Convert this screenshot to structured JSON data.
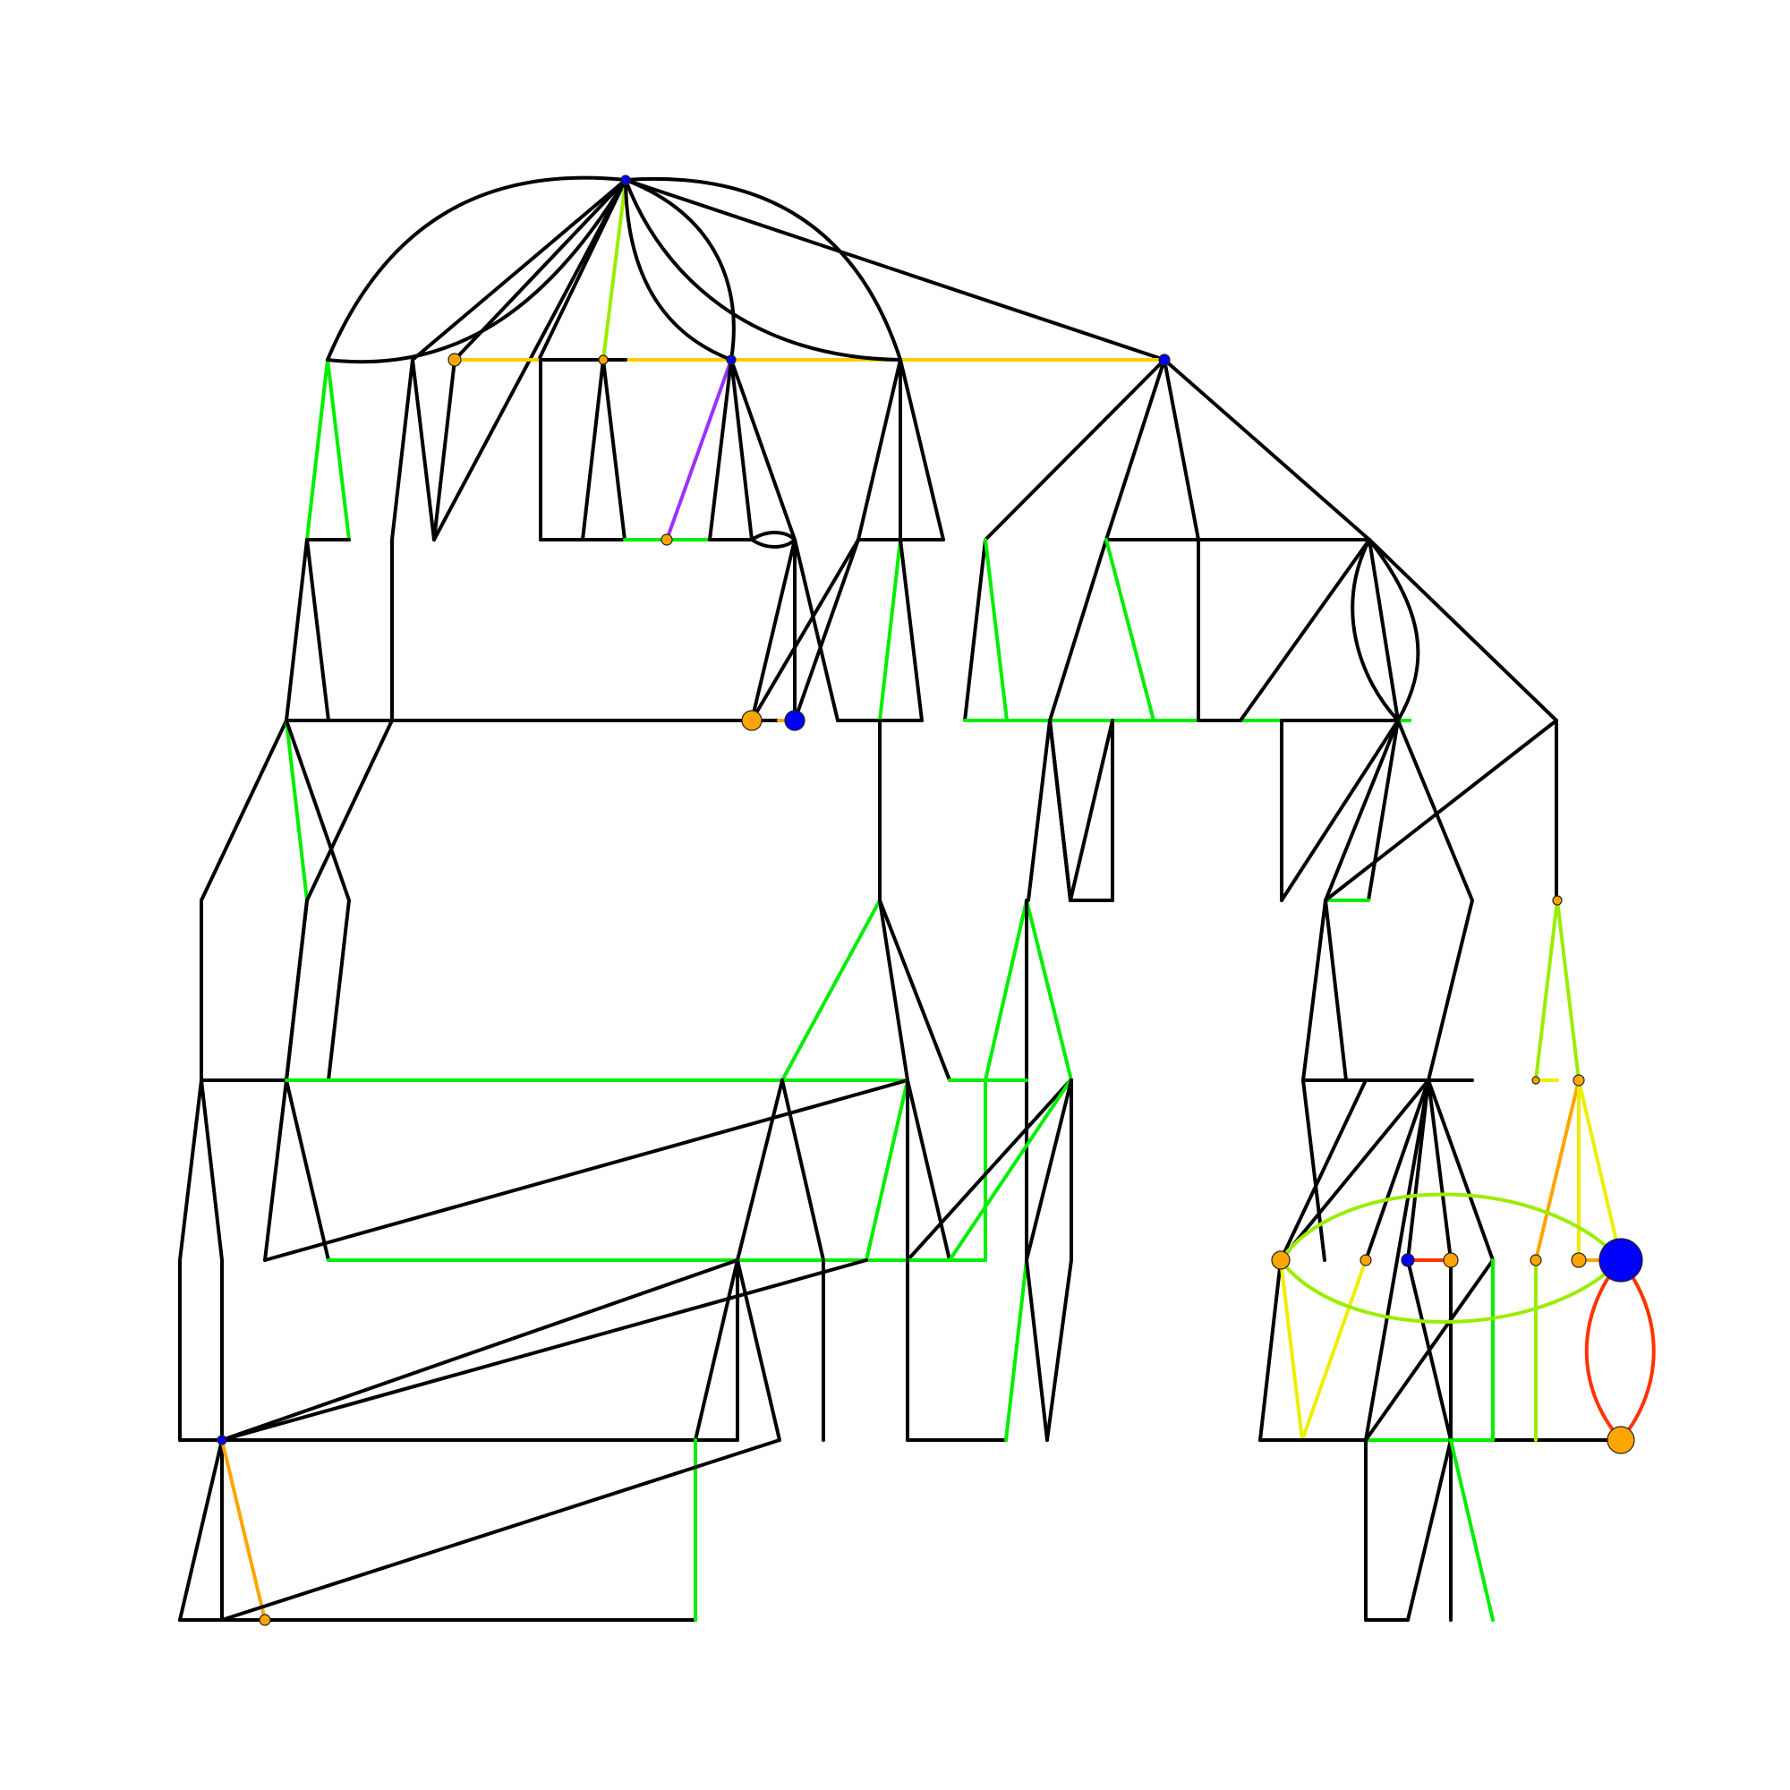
{
  "diagram": {
    "type": "network-graph",
    "palette": {
      "default": "#000000",
      "green": "#00ee00",
      "lime": "#99ee00",
      "yellow": "#eeee00",
      "gold": "#ffcc00",
      "orange": "#ffa500",
      "red": "#ff3300",
      "purple": "#9b30ff",
      "node_blue": "#0000ff",
      "node_orange": "#ffa500"
    },
    "nodes": [
      {
        "id": "hub-top",
        "color": "node_blue",
        "r": 5
      },
      {
        "id": "hub-mid",
        "color": "node_blue",
        "r": 5
      },
      {
        "id": "hub-right",
        "color": "node_blue",
        "r": 6
      },
      {
        "id": "o1",
        "color": "node_orange",
        "r": 7
      },
      {
        "id": "o2",
        "color": "node_orange",
        "r": 5
      },
      {
        "id": "o3",
        "color": "node_orange",
        "r": 6
      },
      {
        "id": "o4",
        "color": "node_orange",
        "r": 11
      },
      {
        "id": "b1",
        "color": "node_blue",
        "r": 11
      },
      {
        "id": "o5",
        "color": "node_orange",
        "r": 5
      },
      {
        "id": "o6",
        "color": "node_orange",
        "r": 4
      },
      {
        "id": "o7",
        "color": "node_orange",
        "r": 6
      },
      {
        "id": "o8",
        "color": "node_orange",
        "r": 10
      },
      {
        "id": "o9",
        "color": "node_orange",
        "r": 6
      },
      {
        "id": "b2",
        "color": "node_blue",
        "r": 7
      },
      {
        "id": "o10",
        "color": "node_orange",
        "r": 8
      },
      {
        "id": "o11",
        "color": "node_orange",
        "r": 6
      },
      {
        "id": "o12",
        "color": "node_orange",
        "r": 8
      },
      {
        "id": "b3",
        "color": "node_blue",
        "r": 24
      },
      {
        "id": "o13",
        "color": "node_orange",
        "r": 15
      },
      {
        "id": "b4",
        "color": "node_blue",
        "r": 5
      },
      {
        "id": "o14",
        "color": "node_orange",
        "r": 6
      }
    ]
  }
}
